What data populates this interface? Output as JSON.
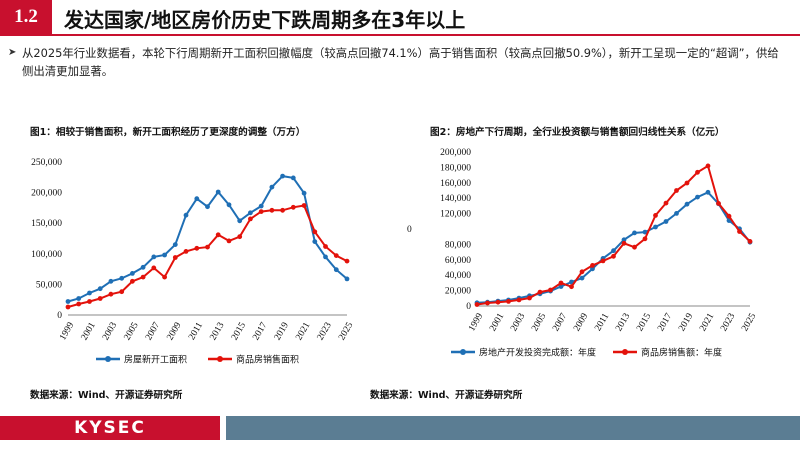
{
  "header": {
    "section_number": "1.2",
    "title": "发达国家/地区房价历史下跌周期多在3年以上",
    "accent_color": "#c8102e"
  },
  "bullet": {
    "text": "从2025年行业数据看，本轮下行周期新开工面积回撤幅度（较高点回撤74.1%）高于销售面积（较高点回撤50.9%），新开工呈现一定的“超调”，供给侧出清更加显著。"
  },
  "chart_data": [
    {
      "type": "line",
      "title": "图1：相较于销售面积，新开工面积经历了更深度的调整（万方）",
      "x": [
        1999,
        2000,
        2001,
        2002,
        2003,
        2004,
        2005,
        2006,
        2007,
        2008,
        2009,
        2010,
        2011,
        2012,
        2013,
        2014,
        2015,
        2016,
        2017,
        2018,
        2019,
        2020,
        2021,
        2022,
        2023,
        2024,
        2025
      ],
      "x_tick_labels": [
        "1999",
        "2001",
        "2003",
        "2005",
        "2007",
        "2009",
        "2011",
        "2013",
        "2015",
        "2017",
        "2019",
        "2021",
        "2023",
        "2025"
      ],
      "ylim": [
        0,
        250000
      ],
      "y_ticks": [
        0,
        50000,
        100000,
        150000,
        200000,
        250000
      ],
      "y_tick_labels": [
        "0",
        "50,000",
        "100,000",
        "150,000",
        "200,000",
        "250,000"
      ],
      "series": [
        {
          "name": "房屋新开工面积",
          "color": "#1f6fb5",
          "values": [
            22000,
            27000,
            36000,
            43000,
            55000,
            60000,
            68000,
            78000,
            95000,
            98000,
            115000,
            163000,
            190000,
            177000,
            201000,
            180000,
            154000,
            167000,
            178000,
            209000,
            227000,
            224000,
            199000,
            120000,
            95000,
            74000,
            59000
          ]
        },
        {
          "name": "商品房销售面积",
          "color": "#e3120b",
          "values": [
            13000,
            18000,
            22000,
            27000,
            34000,
            38000,
            55000,
            62000,
            77000,
            62000,
            94000,
            104000,
            109000,
            111000,
            131000,
            121000,
            128000,
            157000,
            169000,
            171000,
            171000,
            176000,
            179000,
            136000,
            112000,
            97000,
            88000
          ]
        }
      ],
      "legend": "bottom"
    },
    {
      "type": "line",
      "title": "图2：房地产下行周期，全行业投资额与销售额回归线性关系（亿元）",
      "x": [
        1999,
        2000,
        2001,
        2002,
        2003,
        2004,
        2005,
        2006,
        2007,
        2008,
        2009,
        2010,
        2011,
        2012,
        2013,
        2014,
        2015,
        2016,
        2017,
        2018,
        2019,
        2020,
        2021,
        2022,
        2023,
        2024,
        2025
      ],
      "x_tick_labels": [
        "1999",
        "2001",
        "2003",
        "2005",
        "2007",
        "2009",
        "2011",
        "2013",
        "2015",
        "2017",
        "2019",
        "2021",
        "2023",
        "2025"
      ],
      "ylim": [
        0,
        200000
      ],
      "y_ticks": [
        0,
        20000,
        40000,
        60000,
        80000,
        120000,
        140000,
        160000,
        180000,
        200000
      ],
      "y_tick_labels": [
        "0",
        "20,000",
        "40,000",
        "60,000",
        "80,000",
        "120,000",
        "140,000",
        "160,000",
        "180,000",
        "200,000"
      ],
      "y_axis_stray_label": "0",
      "series": [
        {
          "name": "房地产开发投资完成额：年度",
          "color": "#1f6fb5",
          "values": [
            4100,
            4900,
            6300,
            7800,
            10200,
            13200,
            15900,
            19400,
            25300,
            31200,
            36200,
            48300,
            61800,
            71800,
            86000,
            95000,
            95980,
            102600,
            109800,
            120300,
            132200,
            141400,
            147600,
            132900,
            110900,
            100300,
            82800
          ]
        },
        {
          "name": "商品房销售额：年度",
          "color": "#e3120b",
          "values": [
            2000,
            3900,
            4900,
            6000,
            7900,
            10400,
            18000,
            20800,
            29900,
            25100,
            44400,
            52700,
            58600,
            64500,
            81400,
            76300,
            87300,
            117600,
            133700,
            150000,
            159700,
            173600,
            181900,
            133300,
            116600,
            96800,
            83900
          ]
        }
      ],
      "legend": "bottom"
    }
  ],
  "sources": {
    "left": "数据来源：Wind、开源证券研究所",
    "right": "数据来源：Wind、开源证券研究所"
  },
  "footer": {
    "brand": "KYSEC",
    "brand_color": "#c8102e",
    "bar_color": "#5b7d93"
  }
}
